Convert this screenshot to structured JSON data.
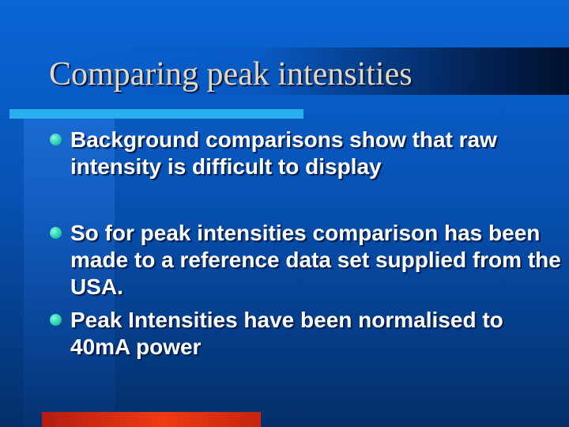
{
  "slide": {
    "title": "Comparing peak intensities",
    "bullets": [
      {
        "text": "Background comparisons show that raw intensity is difficult to display"
      },
      {
        "text": "So for peak intensities comparison has been made to a reference data set supplied from the USA."
      },
      {
        "text": "Peak Intensities have been normalised to 40mA power"
      }
    ]
  },
  "colors": {
    "background": "#0752b4",
    "title_text": "#e3d7bf",
    "body_text": "#ffffff",
    "bullet_dot": "#28d3b0",
    "accent_bar": "#2ab0ef",
    "bottom_bar": "#f03a12"
  },
  "icons": {
    "bullet": "bullet-dot-icon"
  }
}
